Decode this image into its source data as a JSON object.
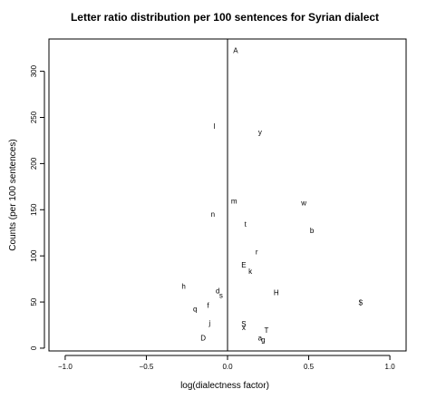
{
  "chart_data": {
    "type": "scatter",
    "title": "Letter ratio distribution per 100 sentences for Syrian dialect",
    "xlabel": "log(dialectness factor)",
    "ylabel": "Counts (per 100 sentences)",
    "xlim": [
      -1.1,
      1.1
    ],
    "ylim": [
      -3,
      335
    ],
    "xticks": [
      -1.0,
      -0.5,
      0.0,
      0.5,
      1.0
    ],
    "xtick_labels": [
      "−1.0",
      "−0.5",
      "0.0",
      "0.5",
      "1.0"
    ],
    "yticks": [
      0,
      50,
      100,
      150,
      200,
      250,
      300
    ],
    "ytick_labels": [
      "0",
      "50",
      "100",
      "150",
      "200",
      "250",
      "300"
    ],
    "reference_line": {
      "x": 0
    },
    "grid": false,
    "points": [
      {
        "label": "A",
        "x": 0.05,
        "y": 322
      },
      {
        "label": "l",
        "x": -0.08,
        "y": 240
      },
      {
        "label": "y",
        "x": 0.2,
        "y": 234
      },
      {
        "label": "m",
        "x": 0.04,
        "y": 159
      },
      {
        "label": "w",
        "x": 0.47,
        "y": 157
      },
      {
        "label": "n",
        "x": -0.09,
        "y": 145
      },
      {
        "label": "t",
        "x": 0.11,
        "y": 134
      },
      {
        "label": "b",
        "x": 0.52,
        "y": 127
      },
      {
        "label": "r",
        "x": 0.18,
        "y": 104
      },
      {
        "label": "E",
        "x": 0.1,
        "y": 90
      },
      {
        "label": "k",
        "x": 0.14,
        "y": 83
      },
      {
        "label": "h",
        "x": -0.27,
        "y": 67
      },
      {
        "label": "d",
        "x": -0.06,
        "y": 62
      },
      {
        "label": "s",
        "x": -0.04,
        "y": 57
      },
      {
        "label": "H",
        "x": 0.3,
        "y": 60
      },
      {
        "label": "$",
        "x": 0.82,
        "y": 49
      },
      {
        "label": "f",
        "x": -0.12,
        "y": 46
      },
      {
        "label": "q",
        "x": -0.2,
        "y": 42
      },
      {
        "label": "j",
        "x": -0.11,
        "y": 27
      },
      {
        "label": "S",
        "x": 0.1,
        "y": 26
      },
      {
        "label": "x",
        "x": 0.1,
        "y": 22
      },
      {
        "label": "T",
        "x": 0.24,
        "y": 19
      },
      {
        "label": "D",
        "x": -0.15,
        "y": 11
      },
      {
        "label": "a",
        "x": 0.2,
        "y": 11
      },
      {
        "label": "g",
        "x": 0.22,
        "y": 9
      }
    ]
  }
}
